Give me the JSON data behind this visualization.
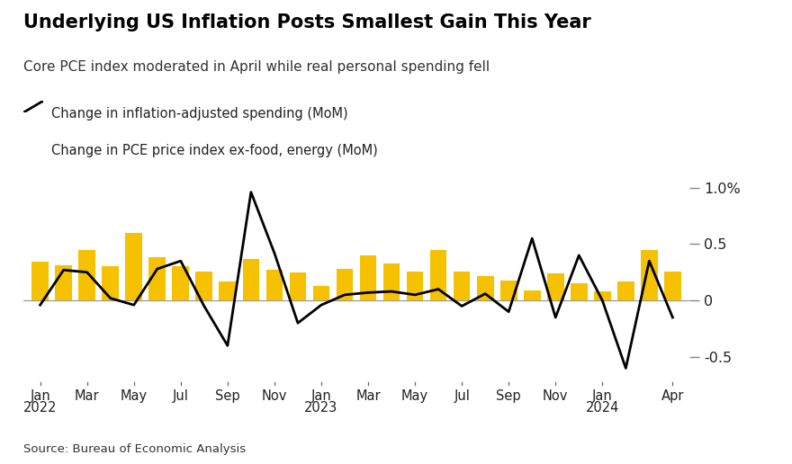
{
  "title": "Underlying US Inflation Posts Smallest Gain This Year",
  "subtitle": "Core PCE index moderated in April while real personal spending fell",
  "legend1": "Change in inflation-adjusted spending (MoM)",
  "legend2": "Change in PCE price index ex-food, energy (MoM)",
  "source": "Source: Bureau of Economic Analysis",
  "bar_values": [
    0.34,
    0.31,
    0.45,
    0.3,
    0.6,
    0.38,
    0.3,
    0.26,
    0.17,
    0.37,
    0.27,
    0.25,
    0.13,
    0.28,
    0.4,
    0.33,
    0.26,
    0.45,
    0.26,
    0.22,
    0.18,
    0.09,
    0.24,
    0.15,
    0.08,
    0.17,
    0.45,
    0.26
  ],
  "line_values": [
    -0.04,
    0.27,
    0.25,
    0.02,
    -0.04,
    0.28,
    0.35,
    -0.05,
    -0.4,
    0.96,
    0.42,
    -0.2,
    -0.04,
    0.05,
    0.07,
    0.08,
    0.05,
    0.1,
    -0.05,
    0.06,
    -0.1,
    0.55,
    -0.15,
    0.4,
    0.0,
    -0.6,
    0.35,
    -0.15
  ],
  "bar_color": "#F5C100",
  "line_color": "#000000",
  "zero_line_color": "#999999",
  "background_color": "#FFFFFF",
  "text_color": "#222222",
  "ylim": [
    -0.75,
    1.1
  ],
  "ytick_vals": [
    -0.5,
    0.0,
    0.5,
    1.0
  ],
  "ytick_labels": [
    "-0.5",
    "0",
    "0.5",
    "1.0%"
  ],
  "tick_positions": [
    0,
    2,
    4,
    6,
    8,
    10,
    12,
    14,
    16,
    18,
    20,
    22,
    24,
    27
  ],
  "tick_labels_top": [
    "Jan",
    "Mar",
    "May",
    "Jul",
    "Sep",
    "Nov",
    "Jan",
    "Mar",
    "May",
    "Jul",
    "Sep",
    "Nov",
    "Jan",
    "Apr"
  ],
  "year_labels": [
    "2022",
    "",
    "",
    "",
    "",
    "",
    "2023",
    "",
    "",
    "",
    "",
    "",
    "2024",
    ""
  ]
}
